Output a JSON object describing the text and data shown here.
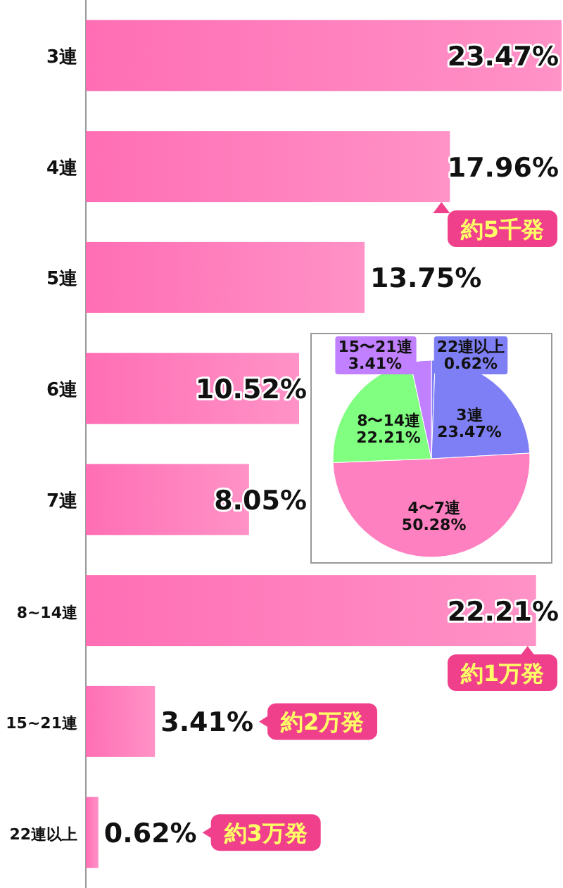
{
  "chart_data": [
    {
      "type": "bar",
      "orientation": "horizontal",
      "categories": [
        "3連",
        "4連",
        "5連",
        "6連",
        "7連",
        "8~14連",
        "15~21連",
        "22連以上"
      ],
      "series": [
        {
          "color": "#ff6eb4",
          "values": [
            23.47,
            17.96,
            13.75,
            10.52,
            8.05,
            22.21,
            3.41,
            0.62
          ],
          "value_labels": [
            "23.47%",
            "17.96%",
            "13.75%",
            "10.52%",
            "8.05%",
            "22.21%",
            "3.41%",
            "0.62%"
          ]
        }
      ],
      "annotations": [
        {
          "text": "約5千発",
          "x": 17.96,
          "y": "4連"
        },
        {
          "text": "約1万発",
          "x": 22.21,
          "y": "8~14連"
        },
        "約2万発",
        "約3万発"
      ]
    },
    {
      "type": "pie",
      "categories": [
        "22連以上",
        "3連",
        "4〜7連",
        "8〜14連",
        "15〜21連"
      ],
      "values": [
        0.62,
        23.47,
        50.28,
        22.21,
        3.41
      ],
      "colors": [
        "#7f7ff5",
        "#7f7ff5",
        "#ff80c0",
        "#80ff80",
        "#c080ff"
      ],
      "value_labels": [
        "0.62%",
        "23.47%",
        "50.28%",
        "22.21%",
        "3.41%"
      ]
    }
  ]
}
